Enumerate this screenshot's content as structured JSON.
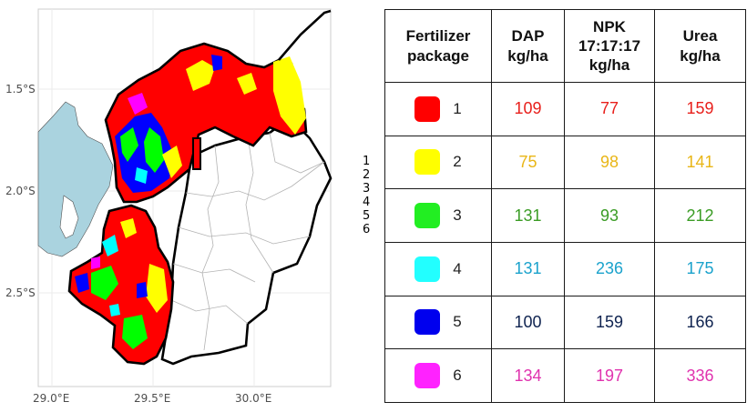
{
  "map": {
    "y_labels": [
      "1.5°S",
      "2.0°S",
      "2.5°S"
    ],
    "x_labels": [
      "29.0°E",
      "29.5°E",
      "30.0°E"
    ],
    "colors": {
      "water": "#aad3df",
      "land": "#ffffff",
      "grid": "#ebebeb",
      "border": "#000000",
      "district": "#b3b3b3"
    }
  },
  "legend": {
    "items": [
      {
        "label": "1",
        "color": "#ff0000"
      },
      {
        "label": "2",
        "color": "#ffff00"
      },
      {
        "label": "3",
        "color": "#00ff00"
      },
      {
        "label": "4",
        "color": "#00ffff"
      },
      {
        "label": "5",
        "color": "#0000ff"
      },
      {
        "label": "6",
        "color": "#ff00ff"
      }
    ]
  },
  "table": {
    "headers": {
      "package": [
        "Fertilizer",
        "package"
      ],
      "dap": [
        "DAP",
        "kg/ha"
      ],
      "npk": [
        "NPK",
        "17:17:17",
        "kg/ha"
      ],
      "urea": [
        "Urea",
        "kg/ha"
      ]
    },
    "rows": [
      {
        "package": "1",
        "swatch": "#ff0000",
        "text_color": "#e8201c",
        "dap": "109",
        "npk": "77",
        "urea": "159"
      },
      {
        "package": "2",
        "swatch": "#ffff00",
        "text_color": "#e9b617",
        "dap": "75",
        "npk": "98",
        "urea": "141"
      },
      {
        "package": "3",
        "swatch": "#22ee22",
        "text_color": "#3a9c24",
        "dap": "131",
        "npk": "93",
        "urea": "212"
      },
      {
        "package": "4",
        "swatch": "#22ffff",
        "text_color": "#1aa2cc",
        "dap": "131",
        "npk": "236",
        "urea": "175"
      },
      {
        "package": "5",
        "swatch": "#0000ee",
        "text_color": "#0f2350",
        "dap": "100",
        "npk": "159",
        "urea": "166"
      },
      {
        "package": "6",
        "swatch": "#ff22ff",
        "text_color": "#e032ae",
        "dap": "134",
        "npk": "197",
        "urea": "336"
      }
    ]
  }
}
